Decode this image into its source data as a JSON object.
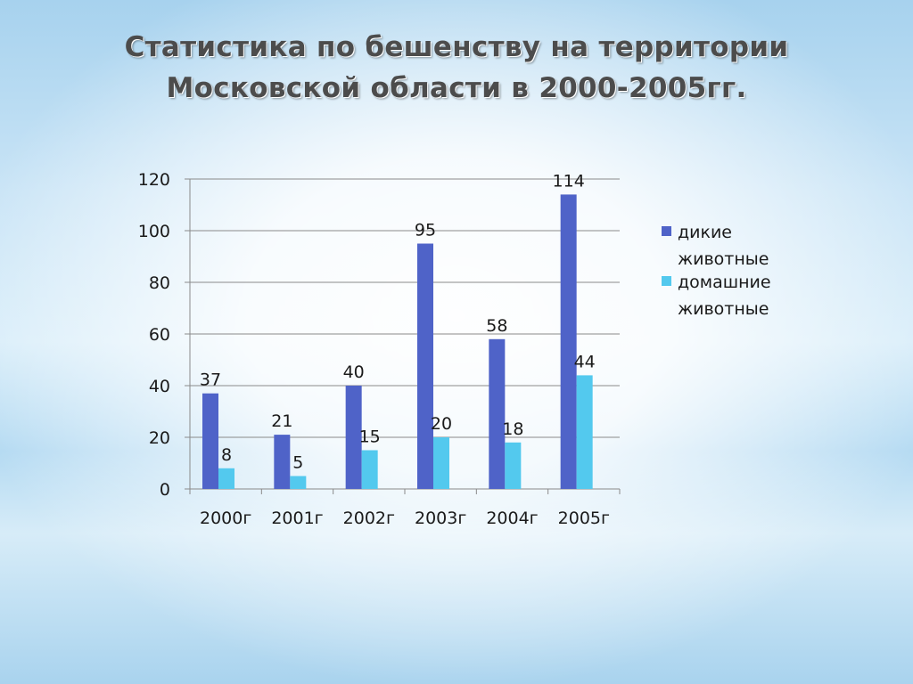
{
  "title": {
    "line1": "Статистика по бешенству на территории",
    "line2": "Московской области в 2000-2005гг."
  },
  "chart_data": {
    "type": "bar",
    "categories": [
      "2000г",
      "2001г",
      "2002г",
      "2003г",
      "2004г",
      "2005г"
    ],
    "series": [
      {
        "name": "дикие животные",
        "color": "#4f63c8",
        "values": [
          37,
          21,
          40,
          95,
          58,
          114
        ]
      },
      {
        "name": "домашние животные",
        "color": "#53c9ee",
        "values": [
          8,
          5,
          15,
          20,
          18,
          44
        ]
      }
    ],
    "ylim": [
      0,
      120
    ],
    "yticks": [
      0,
      20,
      40,
      60,
      80,
      100,
      120
    ],
    "xlabel": "",
    "ylabel": "",
    "grid": true,
    "legend": "right",
    "data_labels": true
  }
}
